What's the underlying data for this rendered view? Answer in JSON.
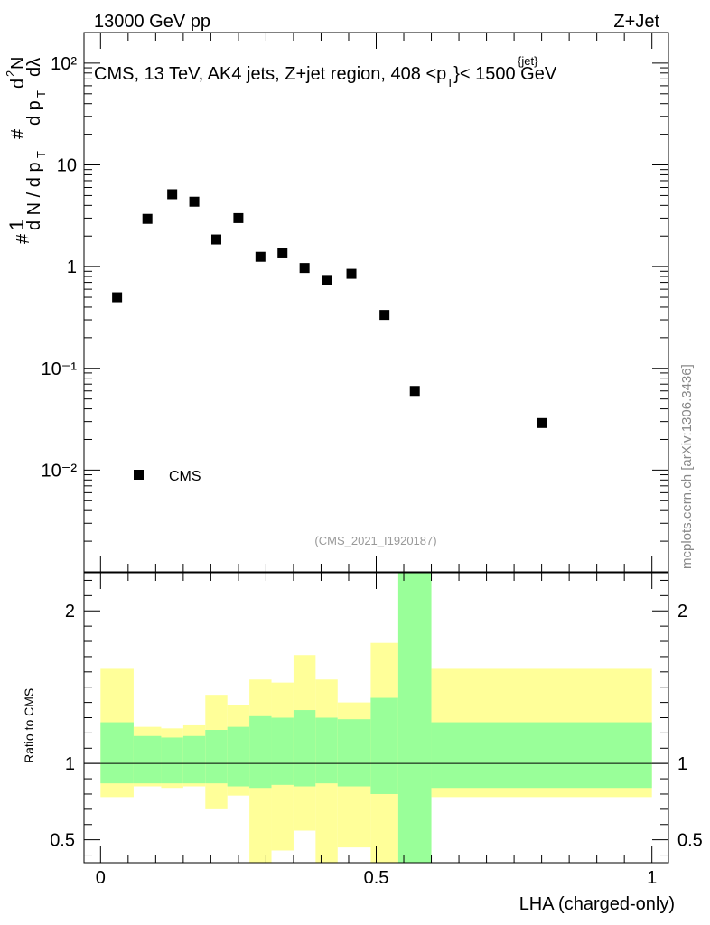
{
  "header": {
    "left": "13000 GeV pp",
    "right": "Z+Jet"
  },
  "watermark": "mcplots.cern.ch [arXiv:1306.3436]",
  "chart_data": [
    {
      "type": "scatter",
      "title": "CMS, 13 TeV, AK4 jets, Z+jet region, 408 <p",
      "title_sup": "{jet}",
      "title_sub": "T",
      "title_tail": "}< 1500 GeV",
      "ylabel": "1/(dN/dpT) d²N/(dpT dλ)",
      "yscale": "log",
      "ylim": [
        0.001,
        200
      ],
      "xlim": [
        -0.03,
        1.03
      ],
      "y_tick_labels": [
        "10⁻²",
        "10⁻¹",
        "1",
        "10",
        "10²"
      ],
      "reference_label": "(CMS_2021_I1920187)",
      "legend": {
        "position": "bottom-left",
        "label": "CMS"
      },
      "series": [
        {
          "name": "CMS",
          "marker": "square",
          "x": [
            0.03,
            0.085,
            0.13,
            0.17,
            0.21,
            0.25,
            0.29,
            0.33,
            0.37,
            0.41,
            0.455,
            0.515,
            0.57,
            0.8
          ],
          "y": [
            0.5,
            2.95,
            5.15,
            4.35,
            1.85,
            3.0,
            1.25,
            1.35,
            0.97,
            0.74,
            0.85,
            0.335,
            0.06,
            0.029
          ]
        }
      ]
    },
    {
      "type": "area",
      "ylabel": "Ratio to CMS",
      "xlabel": "LHA (charged-only)",
      "xlim": [
        -0.03,
        1.03
      ],
      "ylim": [
        0.35,
        2.25
      ],
      "x_tick_labels": [
        "0",
        "0.5",
        "1"
      ],
      "y_tick_labels": [
        "0.5",
        "1",
        "2"
      ],
      "reference_line": 1,
      "bands": {
        "x_edges": [
          0.0,
          0.06,
          0.11,
          0.15,
          0.19,
          0.23,
          0.27,
          0.31,
          0.35,
          0.39,
          0.43,
          0.49,
          0.54,
          0.6,
          1.0
        ],
        "inner_color": "#99ff99",
        "outer_color": "#ffff99",
        "inner_low": [
          0.87,
          0.87,
          0.87,
          0.87,
          0.87,
          0.85,
          0.84,
          0.86,
          0.85,
          0.87,
          0.85,
          0.8,
          0.35,
          0.84
        ],
        "inner_high": [
          1.27,
          1.18,
          1.17,
          1.18,
          1.22,
          1.24,
          1.31,
          1.3,
          1.35,
          1.3,
          1.29,
          1.43,
          2.25,
          1.27
        ],
        "outer_low": [
          0.78,
          0.85,
          0.84,
          0.85,
          0.7,
          0.79,
          0.35,
          0.43,
          0.56,
          0.35,
          0.45,
          0.35,
          0.35,
          0.78
        ],
        "outer_high": [
          1.62,
          1.24,
          1.23,
          1.25,
          1.45,
          1.38,
          1.55,
          1.53,
          1.71,
          1.55,
          1.4,
          1.79,
          2.25,
          1.62
        ]
      }
    }
  ]
}
